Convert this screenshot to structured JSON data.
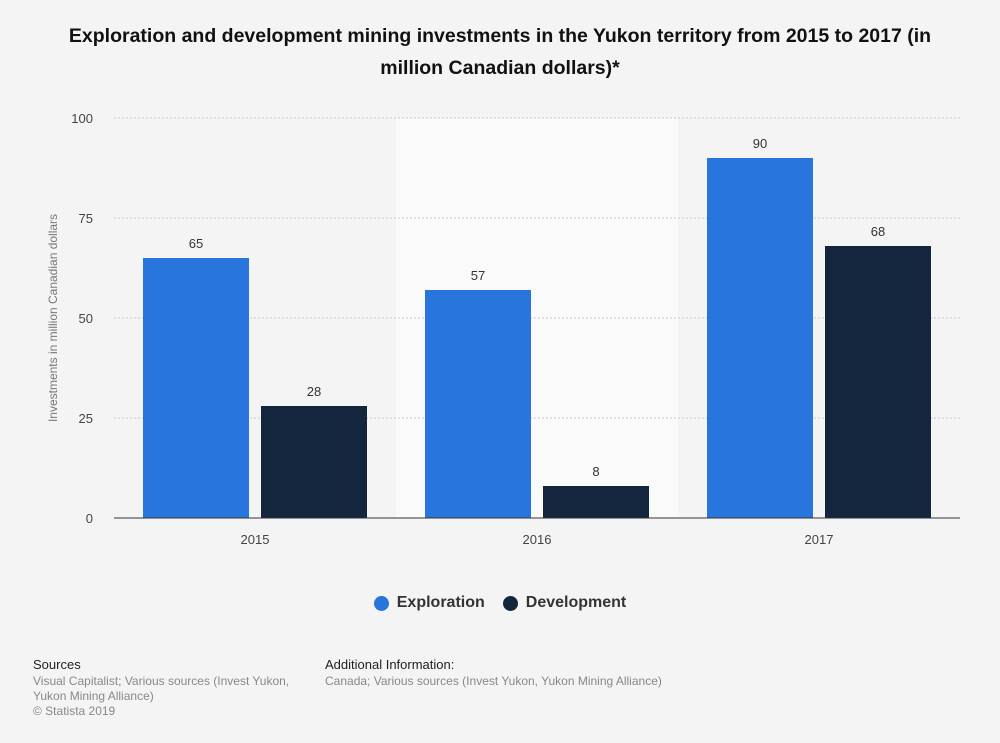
{
  "chart_data": {
    "type": "bar",
    "title": "Exploration and development mining investments in the Yukon territory from 2015 to 2017 (in million Canadian dollars)*",
    "xlabel": "",
    "ylabel": "Investments in million Canadian dollars",
    "categories": [
      "2015",
      "2016",
      "2017"
    ],
    "series": [
      {
        "name": "Exploration",
        "values": [
          65,
          57,
          90
        ],
        "color": "#2876dd"
      },
      {
        "name": "Development",
        "values": [
          28,
          8,
          68
        ],
        "color": "#13263d"
      }
    ],
    "ylim": [
      0,
      100
    ],
    "yticks": [
      0,
      25,
      50,
      75,
      100
    ],
    "grid": true,
    "legend": "bottom-center"
  },
  "footer": {
    "sources_heading": "Sources",
    "sources_lines": [
      "Visual Capitalist; Various sources (Invest Yukon,",
      "Yukon Mining Alliance)",
      "© Statista 2019"
    ],
    "additional_heading": "Additional Information:",
    "additional_text": "Canada; Various sources (Invest Yukon, Yukon Mining Alliance)"
  },
  "colors": {
    "background": "#f4f4f4",
    "highlight_band": "#fafafa"
  }
}
